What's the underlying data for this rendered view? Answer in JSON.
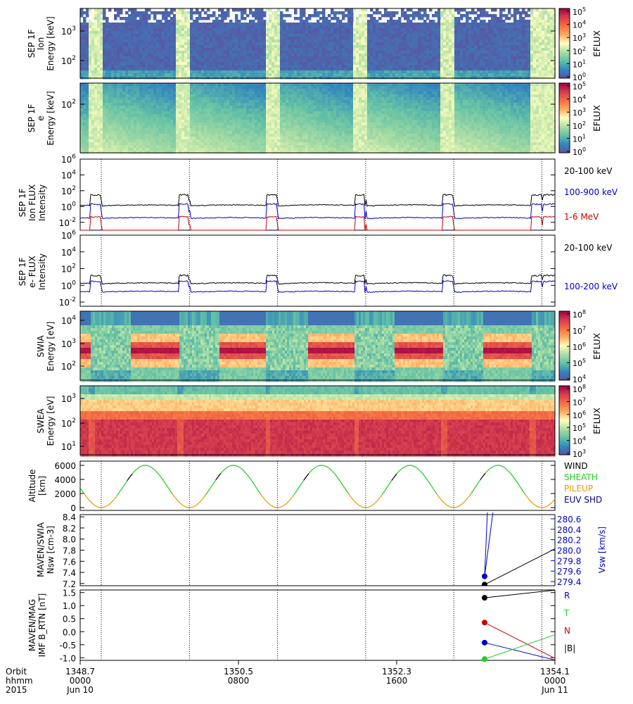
{
  "colors": {
    "black": "#000000",
    "blue": "#0000cc",
    "red": "#cc0000",
    "green": "#22cc22",
    "orange": "#e69a00",
    "navy": "#000080",
    "spec_low": "#5e4fa2",
    "spec_mid": "#ffffbf",
    "spec_high": "#9e0142"
  },
  "chart_data": [
    {
      "type": "heatmap",
      "name": "sep-ion-spectrogram",
      "ylabel": [
        "SEP 1F",
        "Ion",
        "Energy [keV]"
      ],
      "yticks": [
        {
          "base": "10",
          "exp": "3",
          "v": 1000
        },
        {
          "base": "10",
          "exp": "2",
          "v": 100
        }
      ],
      "ylim": [
        20,
        6000
      ],
      "colorbar_label": "EFLUX",
      "colorbar_ticks": [
        "0",
        "1",
        "2",
        "3",
        "4",
        "5"
      ]
    },
    {
      "type": "heatmap",
      "name": "sep-electron-spectrogram",
      "ylabel": [
        "SEP 1F",
        "e",
        "Energy [keV]"
      ],
      "yticks": [
        {
          "base": "10",
          "exp": "2",
          "v": 100
        }
      ],
      "ylim": [
        15,
        250
      ],
      "colorbar_label": "EFLUX",
      "colorbar_ticks": [
        "0",
        "1",
        "2",
        "3",
        "4",
        "5"
      ]
    },
    {
      "type": "line",
      "name": "sep-ion-flux",
      "ylabel": [
        "SEP 1F",
        "Ion FLUX",
        "Intensity"
      ],
      "yticks_exp": [
        "-2",
        "0",
        "2",
        "4",
        "6"
      ],
      "ylim_exp": [
        -3,
        6
      ],
      "series": [
        {
          "name": "20-100 keV",
          "color": "black",
          "high": 30,
          "low": 1.2
        },
        {
          "name": "100-900 keV",
          "color": "blue",
          "high": 2,
          "low": 0.03
        },
        {
          "name": "1-6 MeV",
          "color": "red",
          "high": 0.05,
          "low": 0.0005
        }
      ]
    },
    {
      "type": "line",
      "name": "sep-electron-flux",
      "ylabel": [
        "SEP 1F",
        "e- FLUX",
        "Intensity"
      ],
      "yticks_exp": [
        "-2",
        "0",
        "2",
        "4",
        "6"
      ],
      "ylim_exp": [
        -2.5,
        6
      ],
      "series": [
        {
          "name": "20-100 keV",
          "color": "black",
          "high": 15,
          "low": 1.5
        },
        {
          "name": "100-200 keV",
          "color": "blue",
          "high": 3,
          "low": 0.15
        }
      ]
    },
    {
      "type": "heatmap",
      "name": "swia-spectrogram",
      "ylabel": [
        "SWIA",
        "Energy [eV]"
      ],
      "yticks": [
        {
          "base": "10",
          "exp": "4",
          "v": 10000
        },
        {
          "base": "10",
          "exp": "3",
          "v": 1000
        },
        {
          "base": "10",
          "exp": "2",
          "v": 100
        }
      ],
      "ylim": [
        25,
        25000
      ],
      "colorbar_label": "EFLUX",
      "colorbar_ticks": [
        "4",
        "5",
        "6",
        "7",
        "8"
      ]
    },
    {
      "type": "heatmap",
      "name": "swea-spectrogram",
      "ylabel": [
        "SWEA",
        "Energy [eV]"
      ],
      "yticks": [
        {
          "base": "10",
          "exp": "3",
          "v": 1000
        },
        {
          "base": "10",
          "exp": "2",
          "v": 100
        },
        {
          "base": "10",
          "exp": "1",
          "v": 10
        }
      ],
      "ylim": [
        3,
        5000
      ],
      "colorbar_label": "EFLUX",
      "colorbar_ticks": [
        "3",
        "4",
        "5",
        "6",
        "7",
        "8"
      ]
    },
    {
      "type": "line",
      "name": "altitude",
      "ylabel": [
        "Altitude",
        "[km]"
      ],
      "yticks": [
        "0",
        "2000",
        "4000",
        "6000"
      ],
      "ylim": [
        -400,
        6600
      ],
      "max_km": 6000,
      "min_km": 0,
      "legend": [
        {
          "label": "WIND",
          "color": "black"
        },
        {
          "label": "SHEATH",
          "color": "green"
        },
        {
          "label": "PILEUP",
          "color": "orange"
        },
        {
          "label": "EUV SHD",
          "color": "navy"
        }
      ]
    },
    {
      "type": "line",
      "name": "swia-moments",
      "ylabel": [
        "MAVEN/SWIA",
        "Nsw [cm-3]"
      ],
      "ylabel2": "Vsw [km/s]",
      "yticks": [
        "7.2",
        "7.4",
        "7.6",
        "7.8",
        "8.0",
        "8.2",
        "8.4"
      ],
      "ylim": [
        7.16,
        8.44
      ],
      "yticks_right": [
        "279.4",
        "279.6",
        "279.8",
        "280.0",
        "280.2",
        "280.4",
        "280.6"
      ],
      "ylim_right": [
        279.32,
        280.68
      ],
      "points": [
        {
          "t": 1353.3,
          "density": 7.18,
          "velocity": 279.5
        }
      ]
    },
    {
      "type": "line",
      "name": "imf",
      "ylabel": [
        "MAVEN/MAG",
        "IMF B_RTN [nT]"
      ],
      "yticks": [
        "-1.0",
        "-0.5",
        "0.0",
        "0.5",
        "1.0",
        "1.5"
      ],
      "ylim": [
        -1.1,
        1.6
      ],
      "legend": [
        {
          "label": "R",
          "color": "blue"
        },
        {
          "label": "T",
          "color": "green"
        },
        {
          "label": "N",
          "color": "red"
        },
        {
          "label": "|B|",
          "color": "black"
        }
      ],
      "points": [
        {
          "component": "|B|",
          "value": 1.3
        },
        {
          "component": "N",
          "value": 0.35
        },
        {
          "component": "R",
          "value": -0.42
        },
        {
          "component": "T",
          "value": -1.05
        }
      ]
    }
  ],
  "time_axis": {
    "row_labels": [
      "Orbit",
      "hhmm",
      "2015"
    ],
    "ticks": [
      {
        "orbit": "1348.7",
        "hhmm": "0000",
        "date": "Jun 10"
      },
      {
        "orbit": "1350.5",
        "hhmm": "0800",
        "date": ""
      },
      {
        "orbit": "1352.3",
        "hhmm": "1600",
        "date": ""
      },
      {
        "orbit": "1354.1",
        "hhmm": "0000",
        "date": "Jun 11"
      }
    ]
  }
}
